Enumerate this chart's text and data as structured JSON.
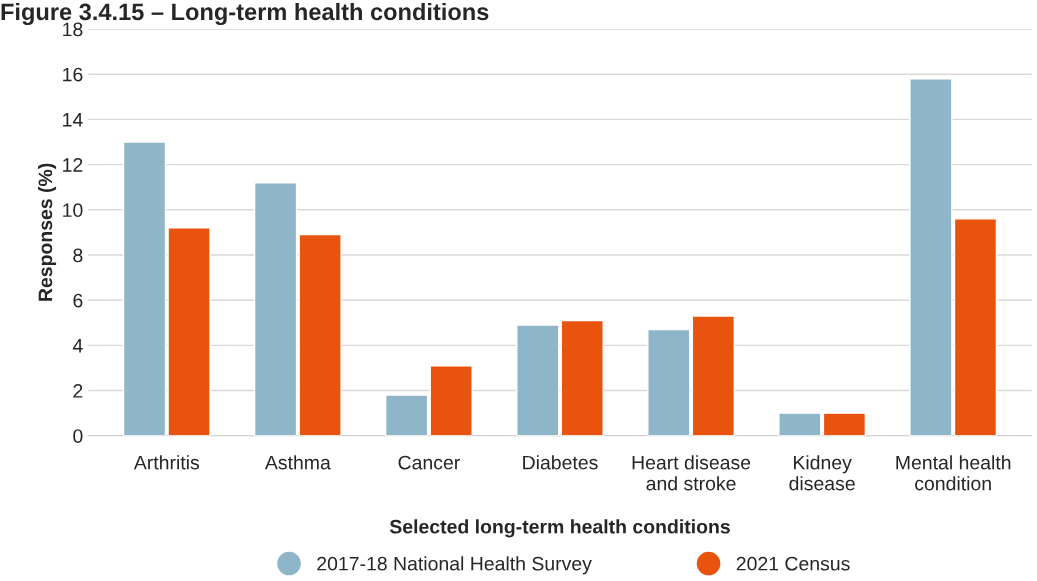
{
  "chart_data": {
    "type": "bar",
    "title": "Figure 3.4.15 – Long-term health conditions",
    "xlabel": "Selected long-term health conditions",
    "ylabel": "Responses (%)",
    "categories": [
      "Arthritis",
      "Asthma",
      "Cancer",
      "Diabetes",
      "Heart disease\nand stroke",
      "Kidney\ndisease",
      "Mental health\ncondition"
    ],
    "series": [
      {
        "name": "2017-18 National Health Survey",
        "color": "#8fb6c8",
        "values": [
          13.0,
          11.2,
          1.8,
          4.9,
          4.7,
          1.0,
          15.8
        ]
      },
      {
        "name": "2021 Census",
        "color": "#e8540e",
        "values": [
          9.2,
          8.9,
          3.1,
          5.1,
          5.3,
          1.0,
          9.6
        ]
      }
    ],
    "ylim": [
      0,
      18
    ],
    "yticks": [
      0,
      2,
      4,
      6,
      8,
      10,
      12,
      14,
      16,
      18
    ],
    "grid": "y",
    "legend": "bottom"
  }
}
